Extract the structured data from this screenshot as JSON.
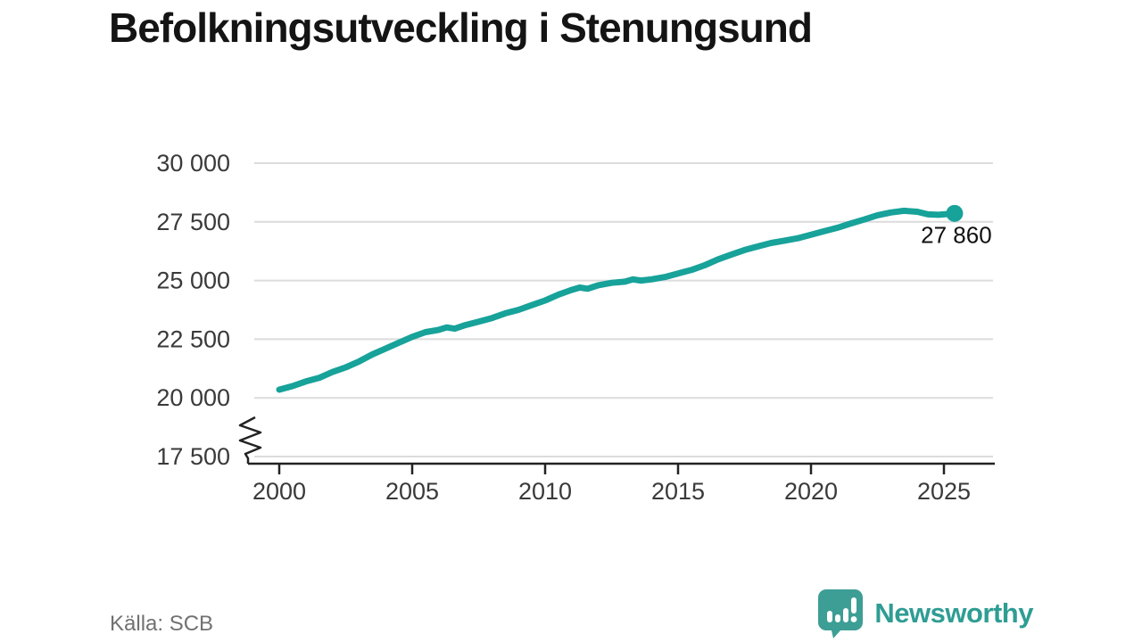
{
  "title": "Befolkningsutveckling i Stenungsund",
  "source": "Källa: SCB",
  "branding": {
    "name": "Newsworthy"
  },
  "colors": {
    "line": "#17a29a",
    "grid": "#dcdcdc",
    "axis": "#222222",
    "tick_label": "#3a3a3a",
    "end_label": "#111111",
    "logo": "#3d9e95"
  },
  "chart_data": {
    "type": "line",
    "title": "Befolkningsutveckling i Stenungsund",
    "xlabel": "",
    "ylabel": "",
    "grid": "horizontal",
    "axis_break_below": 20000,
    "xlim": [
      1999.1,
      2026.9
    ],
    "ylim": [
      17500,
      30000
    ],
    "x_tick_values": [
      2000,
      2005,
      2010,
      2015,
      2020,
      2025
    ],
    "x_tick_labels": [
      "2000",
      "2005",
      "2010",
      "2015",
      "2020",
      "2025"
    ],
    "y_tick_values": [
      30000,
      27500,
      25000,
      22500,
      20000,
      17500
    ],
    "y_tick_labels": [
      "30 000",
      "27 500",
      "25 000",
      "22 500",
      "20 000",
      "17 500"
    ],
    "series": [
      {
        "name": "Befolkning",
        "x": [
          2000,
          2000.5,
          2001,
          2001.5,
          2002,
          2002.5,
          2003,
          2003.5,
          2004,
          2004.5,
          2005,
          2005.5,
          2006,
          2006.3,
          2006.6,
          2007,
          2007.5,
          2008,
          2008.5,
          2009,
          2009.5,
          2010,
          2010.5,
          2011,
          2011.3,
          2011.6,
          2012,
          2012.5,
          2013,
          2013.3,
          2013.6,
          2014,
          2014.5,
          2015,
          2015.5,
          2016,
          2016.5,
          2017,
          2017.5,
          2018,
          2018.5,
          2019,
          2019.5,
          2020,
          2020.5,
          2021,
          2021.5,
          2022,
          2022.5,
          2023,
          2023.5,
          2024,
          2024.4,
          2024.8,
          2025.1,
          2025.4
        ],
        "y": [
          20350,
          20500,
          20700,
          20850,
          21100,
          21300,
          21550,
          21850,
          22100,
          22350,
          22600,
          22800,
          22900,
          23000,
          22950,
          23100,
          23250,
          23400,
          23600,
          23750,
          23950,
          24150,
          24400,
          24600,
          24700,
          24650,
          24800,
          24900,
          24950,
          25050,
          25000,
          25050,
          25150,
          25300,
          25450,
          25650,
          25900,
          26100,
          26300,
          26450,
          26600,
          26700,
          26800,
          26950,
          27100,
          27250,
          27430,
          27600,
          27780,
          27900,
          27970,
          27930,
          27820,
          27800,
          27830,
          27860
        ]
      }
    ],
    "end_point": {
      "x": 2025.4,
      "y": 27860,
      "label": "27 860"
    },
    "source": "Källa: SCB"
  }
}
